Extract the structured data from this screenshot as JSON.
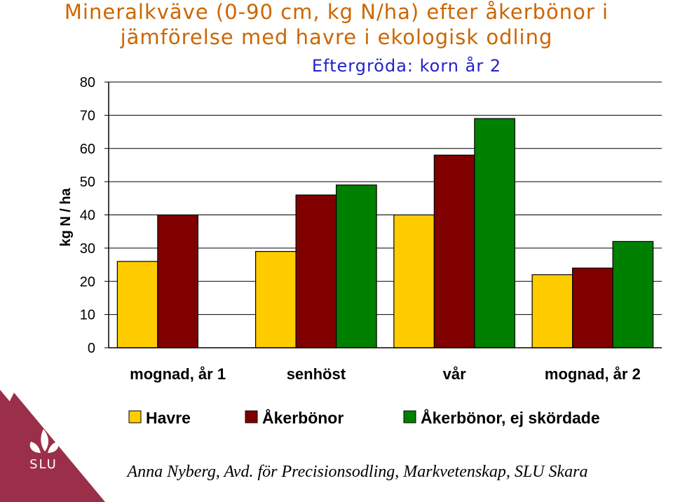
{
  "title_line1": "Mineralkväve (0-90 cm, kg N/ha) efter åkerbönor i",
  "title_line2": "jämförelse med havre i ekologisk odling",
  "subtitle": "Eftergröda: korn år 2",
  "footer": "Anna Nyberg, Avd. för Precisionsodling, Markvetenskap, SLU Skara",
  "logo_text": "SLU",
  "colors": {
    "brand": "#9b2f4a",
    "title": "#cc6600",
    "subtitle": "#2222cc"
  },
  "chart_data": {
    "type": "bar",
    "title": "",
    "xlabel": "",
    "ylabel": "kg N / ha",
    "ylim": [
      0,
      80
    ],
    "yticks": [
      0,
      10,
      20,
      30,
      40,
      50,
      60,
      70,
      80
    ],
    "categories": [
      "mognad, år 1",
      "senhöst",
      "vår",
      "mognad, år 2"
    ],
    "series": [
      {
        "name": "Havre",
        "color": "#ffcc00",
        "values": [
          26,
          29,
          40,
          22
        ]
      },
      {
        "name": "Åkerbönor",
        "color": "#800000",
        "values": [
          40,
          46,
          58,
          24
        ]
      },
      {
        "name": "Åkerbönor, ej skördade",
        "color": "#008000",
        "values": [
          null,
          49,
          69,
          32
        ]
      }
    ],
    "grid": "horizontal",
    "legend": "bottom"
  }
}
